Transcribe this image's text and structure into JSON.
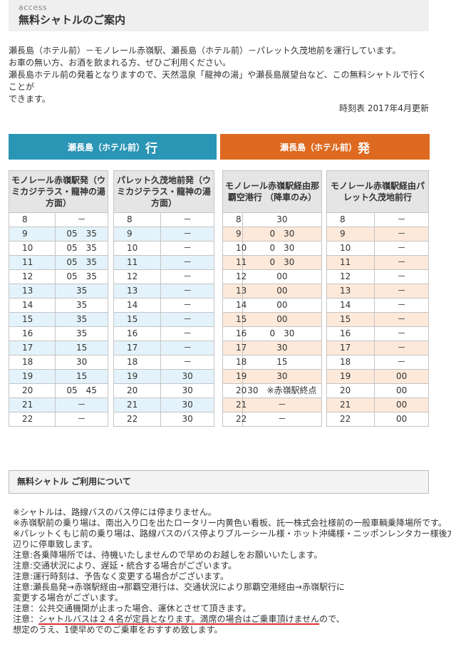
{
  "header": {
    "subtitle": "access",
    "title": "無料シャトルのご案内"
  },
  "intro": {
    "lines": [
      "瀬長島（ホテル前）－モノレール赤嶺駅、瀬長島（ホテル前）－パレット久茂地前を運行しています。",
      "お車の無い方、お酒を飲まれる方、ぜひご利用ください。",
      "瀬長島ホテル前の発着となりますので、天然温泉「龍神の湯」や瀬長島展望台など、この無料シャトルで行くことが",
      "できます。"
    ]
  },
  "updated": "時刻表 2017年4月更新",
  "directions": {
    "to": {
      "label": "瀬長島（ホテル前）",
      "suffix": "行"
    },
    "from": {
      "label": "瀬長島（ホテル前）",
      "suffix": "発"
    }
  },
  "timetables": [
    {
      "header": "モノレール赤嶺駅発（ウミカジテラス・龍神の湯方面）",
      "rows": [
        {
          "h": "8",
          "m": "－"
        },
        {
          "h": "9",
          "m": "05　35"
        },
        {
          "h": "10",
          "m": "05　35"
        },
        {
          "h": "11",
          "m": "05　35"
        },
        {
          "h": "12",
          "m": "05　35"
        },
        {
          "h": "13",
          "m": "35"
        },
        {
          "h": "14",
          "m": "35"
        },
        {
          "h": "15",
          "m": "35"
        },
        {
          "h": "16",
          "m": "35"
        },
        {
          "h": "17",
          "m": "15"
        },
        {
          "h": "18",
          "m": "30"
        },
        {
          "h": "19",
          "m": "15"
        },
        {
          "h": "20",
          "m": "05　45"
        },
        {
          "h": "21",
          "m": "－"
        },
        {
          "h": "22",
          "m": "－"
        }
      ]
    },
    {
      "header": "パレット久茂地前発（ウミカジテラス・龍神の湯方面）",
      "rows": [
        {
          "h": "8",
          "m": "－"
        },
        {
          "h": "9",
          "m": "－"
        },
        {
          "h": "10",
          "m": "－"
        },
        {
          "h": "11",
          "m": "－"
        },
        {
          "h": "12",
          "m": "－"
        },
        {
          "h": "13",
          "m": "－"
        },
        {
          "h": "14",
          "m": "－"
        },
        {
          "h": "15",
          "m": "－"
        },
        {
          "h": "16",
          "m": "－"
        },
        {
          "h": "17",
          "m": "－"
        },
        {
          "h": "18",
          "m": "－"
        },
        {
          "h": "19",
          "m": "30"
        },
        {
          "h": "20",
          "m": "30"
        },
        {
          "h": "21",
          "m": "30"
        },
        {
          "h": "22",
          "m": "30"
        }
      ]
    },
    {
      "header": "モノレール赤嶺駅経由那覇空港行 （降車のみ）",
      "rows": [
        {
          "h": "8",
          "m": "30"
        },
        {
          "h": "9",
          "m": "0　30"
        },
        {
          "h": "10",
          "m": "0　30"
        },
        {
          "h": "11",
          "m": "0　30"
        },
        {
          "h": "12",
          "m": "00"
        },
        {
          "h": "13",
          "m": "00"
        },
        {
          "h": "14",
          "m": "00"
        },
        {
          "h": "15",
          "m": "00"
        },
        {
          "h": "16",
          "m": "0　30"
        },
        {
          "h": "17",
          "m": "30"
        },
        {
          "h": "18",
          "m": "15"
        },
        {
          "h": "19",
          "m": "30"
        },
        {
          "h": "20",
          "m": "30　※赤嶺駅終点"
        },
        {
          "h": "21",
          "m": "－"
        },
        {
          "h": "22",
          "m": "－"
        }
      ]
    },
    {
      "header": "モノレール赤嶺駅経由パレット久茂地前行",
      "rows": [
        {
          "h": "8",
          "m": "－"
        },
        {
          "h": "9",
          "m": "－"
        },
        {
          "h": "10",
          "m": "－"
        },
        {
          "h": "11",
          "m": "－"
        },
        {
          "h": "12",
          "m": "－"
        },
        {
          "h": "13",
          "m": "－"
        },
        {
          "h": "14",
          "m": "－"
        },
        {
          "h": "15",
          "m": "－"
        },
        {
          "h": "16",
          "m": "－"
        },
        {
          "h": "17",
          "m": "－"
        },
        {
          "h": "18",
          "m": "－"
        },
        {
          "h": "19",
          "m": "00"
        },
        {
          "h": "20",
          "m": "00"
        },
        {
          "h": "21",
          "m": "00"
        },
        {
          "h": "22",
          "m": "00"
        }
      ]
    }
  ],
  "usage": {
    "title": "無料シャトル ご利用について"
  },
  "notes": [
    "※シャトルは、路線バスのバス停には停まりません。",
    "※赤嶺駅前の乗り場は、南出入り口を出たロータリー内黄色い看板、託一株式会社様前の一般車輌乗降場所です。",
    "※パレットくもじ前の乗り場は、路線バスのバス停よりブルーシール様・ホット沖縄様・ニッポンレンタカー様後方",
    "辺りに停車致します。",
    "注意:各乗降場所では、待機いたしませんので早めのお越しをお願いいたします。",
    "注意:交通状況により、遅延・統合する場合がございます。",
    "注意:運行時刻は、予告なく変更する場合がございます。",
    "注意:瀬長島発→赤嶺駅経由→那覇空港行は、交通状況により那覇空港経由→赤嶺駅行に",
    "変更する場合がございます。",
    "注意：公共交通機関が止まった場合、運休とさせて頂きます。"
  ],
  "note_capacity": {
    "prefix": "注意：",
    "underlined": "シャトルバスは２４名が定員となります。満席の場合はご乗車頂けません",
    "suffix": "ので、",
    "next_line": "想定のうえ、1便早めでのご乗車をおすすめ致します。"
  }
}
